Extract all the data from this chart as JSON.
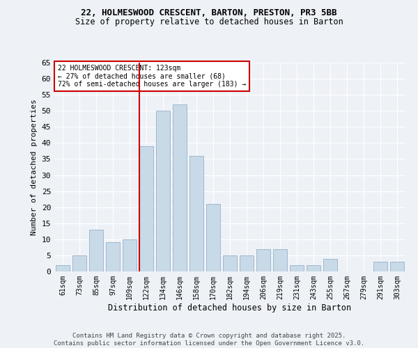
{
  "title_line1": "22, HOLMESWOOD CRESCENT, BARTON, PRESTON, PR3 5BB",
  "title_line2": "Size of property relative to detached houses in Barton",
  "xlabel": "Distribution of detached houses by size in Barton",
  "ylabel": "Number of detached properties",
  "categories": [
    "61sqm",
    "73sqm",
    "85sqm",
    "97sqm",
    "109sqm",
    "122sqm",
    "134sqm",
    "146sqm",
    "158sqm",
    "170sqm",
    "182sqm",
    "194sqm",
    "206sqm",
    "219sqm",
    "231sqm",
    "243sqm",
    "255sqm",
    "267sqm",
    "279sqm",
    "291sqm",
    "303sqm"
  ],
  "values": [
    2,
    5,
    13,
    9,
    10,
    39,
    50,
    52,
    36,
    21,
    5,
    5,
    7,
    7,
    2,
    2,
    4,
    0,
    0,
    3,
    3
  ],
  "bar_color": "#c8d9e8",
  "bar_edge_color": "#a0b8cc",
  "background_color": "#eef2f7",
  "grid_color": "#ffffff",
  "vline_index": 5,
  "vline_color": "#cc0000",
  "annotation_box_text": "22 HOLMESWOOD CRESCENT: 123sqm\n← 27% of detached houses are smaller (68)\n72% of semi-detached houses are larger (183) →",
  "annotation_box_color": "#cc0000",
  "annotation_box_bg": "#ffffff",
  "ylim": [
    0,
    65
  ],
  "yticks": [
    0,
    5,
    10,
    15,
    20,
    25,
    30,
    35,
    40,
    45,
    50,
    55,
    60,
    65
  ],
  "footer_line1": "Contains HM Land Registry data © Crown copyright and database right 2025.",
  "footer_line2": "Contains public sector information licensed under the Open Government Licence v3.0."
}
